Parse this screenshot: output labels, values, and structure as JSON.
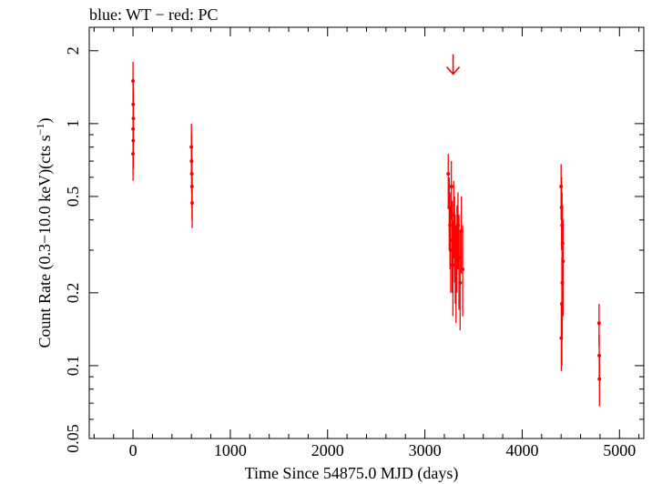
{
  "chart_data": {
    "type": "scatter",
    "title": "blue: WT − red: PC",
    "xlabel": "Time Since 54875.0 MJD (days)",
    "ylabel_main": "Count Rate (0.3−10.0 keV)(cts s",
    "ylabel_sup": "−1",
    "ylabel_tail": ")",
    "xlim": [
      -450,
      5250
    ],
    "ylim": [
      0.05,
      2.5
    ],
    "yscale": "log",
    "x_ticks": [
      0,
      1000,
      2000,
      3000,
      4000,
      5000
    ],
    "x_tick_labels": [
      "0",
      "1000",
      "2000",
      "3000",
      "4000",
      "5000"
    ],
    "y_ticks": [
      0.05,
      0.1,
      0.2,
      0.5,
      1,
      2
    ],
    "y_tick_labels": [
      "0.05",
      "0.1",
      "0.2",
      "0.5",
      "1",
      "2"
    ],
    "grid": false,
    "color": "#ff0000",
    "series": [
      {
        "values": [
          {
            "x": 0,
            "y": 1.5,
            "lo": 1.2,
            "hi": 1.8
          },
          {
            "x": 2,
            "y": 1.2,
            "lo": 0.95,
            "hi": 1.5
          },
          {
            "x": 4,
            "y": 1.05,
            "lo": 0.8,
            "hi": 1.35
          },
          {
            "x": 1,
            "y": 0.95,
            "lo": 0.72,
            "hi": 1.2
          },
          {
            "x": 3,
            "y": 0.85,
            "lo": 0.65,
            "hi": 1.1
          },
          {
            "x": 0,
            "y": 0.75,
            "lo": 0.58,
            "hi": 0.95
          },
          {
            "x": 600,
            "y": 0.8,
            "lo": 0.62,
            "hi": 1.0
          },
          {
            "x": 602,
            "y": 0.7,
            "lo": 0.52,
            "hi": 0.9
          },
          {
            "x": 604,
            "y": 0.62,
            "lo": 0.45,
            "hi": 0.82
          },
          {
            "x": 606,
            "y": 0.55,
            "lo": 0.4,
            "hi": 0.72
          },
          {
            "x": 608,
            "y": 0.47,
            "lo": 0.37,
            "hi": 0.6
          },
          {
            "x": 3240,
            "y": 0.62,
            "lo": 0.45,
            "hi": 0.75
          },
          {
            "x": 3250,
            "y": 0.45,
            "lo": 0.3,
            "hi": 0.6
          },
          {
            "x": 3258,
            "y": 0.38,
            "lo": 0.25,
            "hi": 0.52
          },
          {
            "x": 3265,
            "y": 0.3,
            "lo": 0.2,
            "hi": 0.45
          },
          {
            "x": 3272,
            "y": 0.55,
            "lo": 0.4,
            "hi": 0.7
          },
          {
            "x": 3280,
            "y": 0.33,
            "lo": 0.2,
            "hi": 0.48
          },
          {
            "x": 3288,
            "y": 0.26,
            "lo": 0.16,
            "hi": 0.4
          },
          {
            "x": 3296,
            "y": 0.42,
            "lo": 0.28,
            "hi": 0.58
          },
          {
            "x": 3305,
            "y": 0.35,
            "lo": 0.22,
            "hi": 0.5
          },
          {
            "x": 3312,
            "y": 0.28,
            "lo": 0.18,
            "hi": 0.42
          },
          {
            "x": 3320,
            "y": 0.24,
            "lo": 0.15,
            "hi": 0.38
          },
          {
            "x": 3330,
            "y": 0.32,
            "lo": 0.2,
            "hi": 0.46
          },
          {
            "x": 3340,
            "y": 0.38,
            "lo": 0.25,
            "hi": 0.52
          },
          {
            "x": 3350,
            "y": 0.28,
            "lo": 0.17,
            "hi": 0.42
          },
          {
            "x": 3362,
            "y": 0.22,
            "lo": 0.14,
            "hi": 0.36
          },
          {
            "x": 3375,
            "y": 0.36,
            "lo": 0.24,
            "hi": 0.5
          },
          {
            "x": 3388,
            "y": 0.25,
            "lo": 0.16,
            "hi": 0.38
          },
          {
            "x": 4400,
            "y": 0.55,
            "lo": 0.4,
            "hi": 0.68
          },
          {
            "x": 4405,
            "y": 0.45,
            "lo": 0.3,
            "hi": 0.6
          },
          {
            "x": 4410,
            "y": 0.38,
            "lo": 0.25,
            "hi": 0.52
          },
          {
            "x": 4415,
            "y": 0.32,
            "lo": 0.2,
            "hi": 0.46
          },
          {
            "x": 4420,
            "y": 0.27,
            "lo": 0.16,
            "hi": 0.4
          },
          {
            "x": 4412,
            "y": 0.22,
            "lo": 0.13,
            "hi": 0.35
          },
          {
            "x": 4408,
            "y": 0.18,
            "lo": 0.1,
            "hi": 0.28
          },
          {
            "x": 4402,
            "y": 0.13,
            "lo": 0.095,
            "hi": 0.18
          },
          {
            "x": 4790,
            "y": 0.15,
            "lo": 0.12,
            "hi": 0.18
          },
          {
            "x": 4792,
            "y": 0.11,
            "lo": 0.088,
            "hi": 0.135
          },
          {
            "x": 4794,
            "y": 0.088,
            "lo": 0.068,
            "hi": 0.11
          }
        ]
      }
    ],
    "upper_limits": [
      {
        "x": 3290,
        "y": 1.6
      }
    ]
  }
}
